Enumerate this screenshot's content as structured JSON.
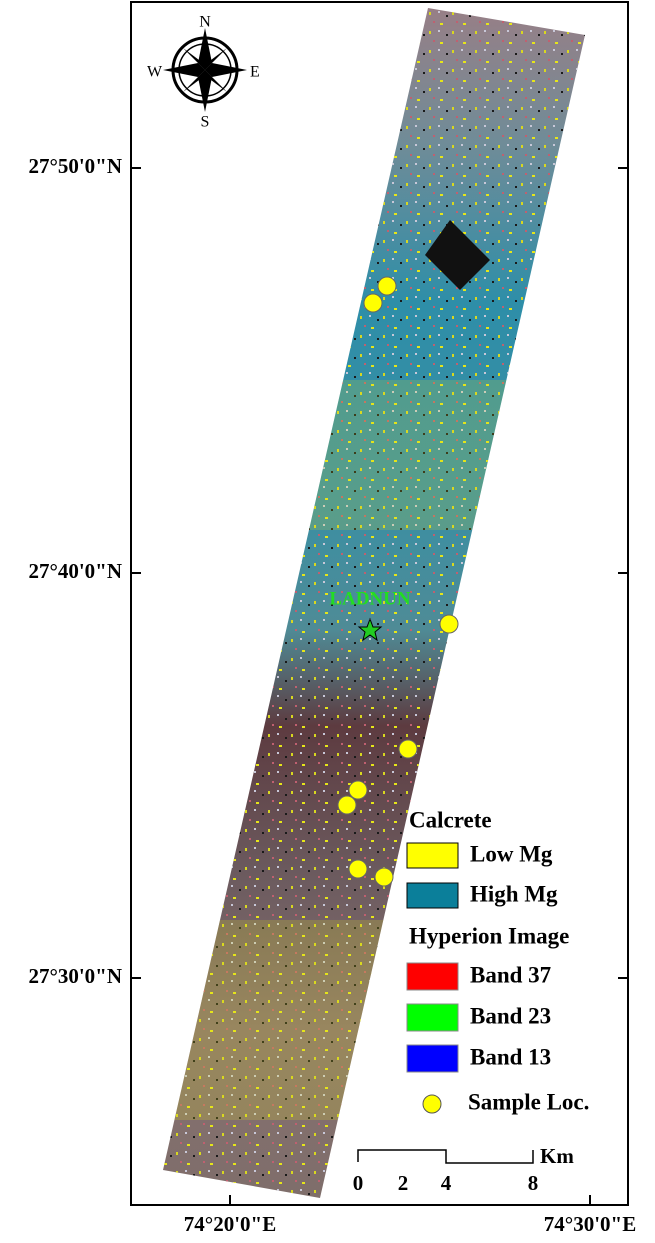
{
  "map": {
    "compass": {
      "north": "N",
      "south": "S",
      "east": "E",
      "west": "W"
    },
    "latitude_labels": [
      "27°50'0\"N",
      "27°40'0\"N",
      "27°30'0\"N"
    ],
    "longitude_labels": [
      "74°20'0\"E",
      "74°30'0\"E"
    ],
    "town": "LADNUN",
    "legend": {
      "calcrete_title": "Calcrete",
      "calcrete_items": [
        {
          "label": "Low Mg",
          "color": "#ffff00"
        },
        {
          "label": "High Mg",
          "color": "#0b7f9a"
        }
      ],
      "image_title": "Hyperion Image",
      "image_items": [
        {
          "label": "Band 37",
          "color": "#ff0000"
        },
        {
          "label": "Band 23",
          "color": "#00ff00"
        },
        {
          "label": "Band 13",
          "color": "#0000ff"
        }
      ],
      "sample_label": "Sample Loc."
    },
    "scale_bar": {
      "labels": [
        "0",
        "2",
        "4",
        "8"
      ],
      "unit": "Km"
    }
  }
}
